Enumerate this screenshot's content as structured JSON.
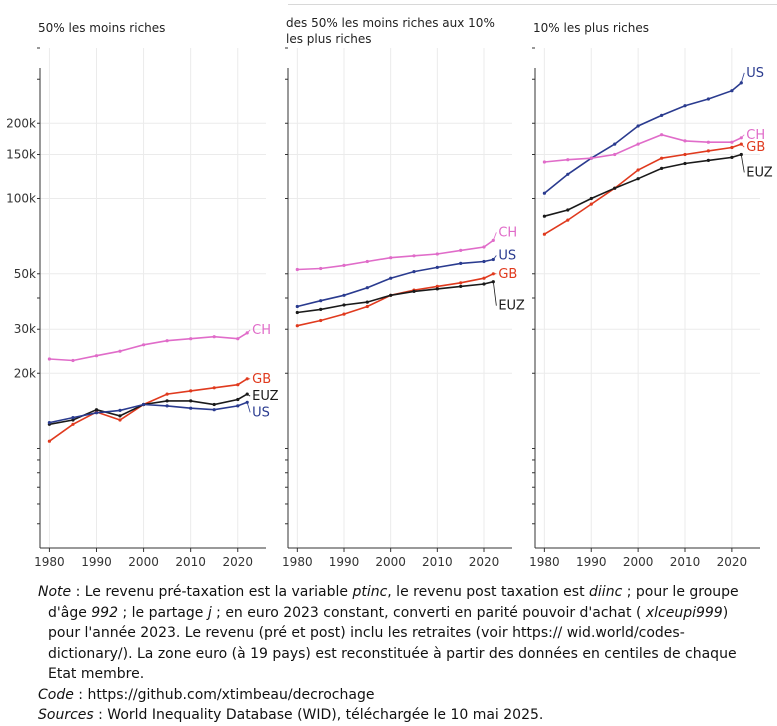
{
  "chart_data": {
    "type": "line",
    "y_scale": "log",
    "ylim": [
      4000,
      400000
    ],
    "xlim": [
      1978,
      2026
    ],
    "x_ticks": [
      1980,
      1990,
      2000,
      2010,
      2020
    ],
    "y_ticks": [
      {
        "value": 20000,
        "label": "20k"
      },
      {
        "value": 30000,
        "label": "30k"
      },
      {
        "value": 50000,
        "label": "50k"
      },
      {
        "value": 100000,
        "label": "100k"
      },
      {
        "value": 150000,
        "label": "150k"
      },
      {
        "value": 200000,
        "label": "200k"
      }
    ],
    "y_minor_ticks": [
      5000,
      6000,
      7000,
      8000,
      9000,
      10000,
      40000,
      300000,
      400000
    ],
    "grid": true,
    "colors": {
      "US": "#2a3b8f",
      "CH": "#e06cc9",
      "GB": "#e03a1e",
      "EUZ": "#1a1a1a"
    },
    "panels": [
      {
        "title": [
          "50% les moins riches"
        ],
        "series": [
          {
            "name": "CH",
            "x": [
              1980,
              1985,
              1990,
              1995,
              2000,
              2005,
              2010,
              2015,
              2020,
              2022
            ],
            "y": [
              22800,
              22500,
              23500,
              24500,
              26000,
              27000,
              27500,
              28000,
              27500,
              29000
            ]
          },
          {
            "name": "GB",
            "x": [
              1980,
              1985,
              1990,
              1995,
              2000,
              2005,
              2010,
              2015,
              2020,
              2022
            ],
            "y": [
              10700,
              12500,
              14000,
              13000,
              15000,
              16500,
              17000,
              17500,
              18000,
              19000
            ]
          },
          {
            "name": "EUZ",
            "x": [
              1980,
              1985,
              1990,
              1995,
              2000,
              2005,
              2010,
              2015,
              2020,
              2022
            ],
            "y": [
              12500,
              13000,
              14300,
              13500,
              15000,
              15500,
              15500,
              15000,
              15700,
              16500
            ]
          },
          {
            "name": "US",
            "x": [
              1980,
              1985,
              1990,
              1995,
              2000,
              2005,
              2010,
              2015,
              2020,
              2022
            ],
            "y": [
              12700,
              13300,
              13900,
              14200,
              15000,
              14800,
              14500,
              14300,
              14800,
              15300
            ]
          }
        ]
      },
      {
        "title": [
          "des 50% les moins riches aux 10%",
          "les plus riches"
        ],
        "series": [
          {
            "name": "CH",
            "x": [
              1980,
              1985,
              1990,
              1995,
              2000,
              2005,
              2010,
              2015,
              2020,
              2022
            ],
            "y": [
              52000,
              52500,
              54000,
              56000,
              58000,
              59000,
              60000,
              62000,
              64000,
              68000
            ]
          },
          {
            "name": "US",
            "x": [
              1980,
              1985,
              1990,
              1995,
              2000,
              2005,
              2010,
              2015,
              2020,
              2022
            ],
            "y": [
              37000,
              39000,
              41000,
              44000,
              48000,
              51000,
              53000,
              55000,
              56000,
              57000
            ]
          },
          {
            "name": "GB",
            "x": [
              1980,
              1985,
              1990,
              1995,
              2000,
              2005,
              2010,
              2015,
              2020,
              2022
            ],
            "y": [
              31000,
              32500,
              34500,
              37000,
              41000,
              43000,
              44500,
              46000,
              48000,
              50000
            ]
          },
          {
            "name": "EUZ",
            "x": [
              1980,
              1985,
              1990,
              1995,
              2000,
              2005,
              2010,
              2015,
              2020,
              2022
            ],
            "y": [
              35000,
              36000,
              37500,
              38500,
              41000,
              42500,
              43500,
              44500,
              45500,
              46500
            ]
          }
        ]
      },
      {
        "title": [
          "10% les plus riches"
        ],
        "series": [
          {
            "name": "US",
            "x": [
              1980,
              1985,
              1990,
              1995,
              2000,
              2005,
              2010,
              2015,
              2020,
              2022
            ],
            "y": [
              105000,
              125000,
              145000,
              165000,
              195000,
              215000,
              235000,
              250000,
              270000,
              290000
            ]
          },
          {
            "name": "CH",
            "x": [
              1980,
              1985,
              1990,
              1995,
              2000,
              2005,
              2010,
              2015,
              2020,
              2022
            ],
            "y": [
              140000,
              143000,
              145000,
              150000,
              165000,
              180000,
              170000,
              168000,
              168000,
              175000
            ]
          },
          {
            "name": "GB",
            "x": [
              1980,
              1985,
              1990,
              1995,
              2000,
              2005,
              2010,
              2015,
              2020,
              2022
            ],
            "y": [
              72000,
              82000,
              95000,
              110000,
              130000,
              145000,
              150000,
              155000,
              160000,
              165000
            ]
          },
          {
            "name": "EUZ",
            "x": [
              1980,
              1985,
              1990,
              1995,
              2000,
              2005,
              2010,
              2015,
              2020,
              2022
            ],
            "y": [
              85000,
              90000,
              100000,
              110000,
              120000,
              132000,
              138000,
              142000,
              146000,
              150000
            ]
          }
        ]
      }
    ]
  },
  "notes": {
    "note_label": "Note",
    "note_parts": [
      {
        "t": " : Le revenu pré-taxation est la variable ",
        "i": false
      },
      {
        "t": "ptinc",
        "i": true
      },
      {
        "t": ", le revenu post taxation est ",
        "i": false
      },
      {
        "t": "diinc",
        "i": true
      },
      {
        "t": " ; pour le groupe d'âge ",
        "i": false
      },
      {
        "t": "992",
        "i": true
      },
      {
        "t": " ; le partage ",
        "i": false
      },
      {
        "t": "j",
        "i": true
      },
      {
        "t": " ; en euro 2023 constant, converti en parité pouvoir d'achat ( ",
        "i": false
      },
      {
        "t": "xlceupi999",
        "i": true
      },
      {
        "t": ") pour l'année 2023. Le revenu (pré et post) inclu les retraites (voir https:// wid.world/codes-dictionary/). La zone euro (à 19 pays) est reconstituée à partir des données en centiles de chaque Etat membre.",
        "i": false
      }
    ],
    "code_label": "Code",
    "code_text": " : https://github.com/xtimbeau/decrochage",
    "sources_label": "Sources",
    "sources_text": " : World Inequality Database (WID), téléchargée le 10 mai 2025."
  }
}
